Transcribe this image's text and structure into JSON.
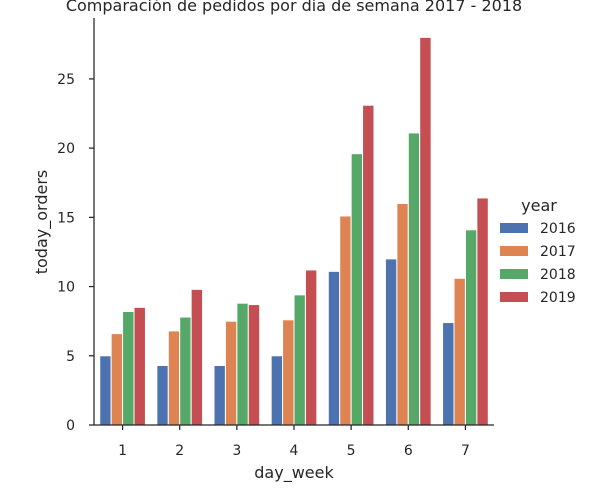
{
  "chart_data": {
    "type": "bar",
    "title": "Comparación de pedidos por día de semana 2017 - 2018",
    "xlabel": "day_week",
    "ylabel": "today_orders",
    "ylim": [
      0,
      29.4
    ],
    "yticks": [
      0,
      5,
      10,
      15,
      20,
      25
    ],
    "categories": [
      "1",
      "2",
      "3",
      "4",
      "5",
      "6",
      "7"
    ],
    "legend_title": "year",
    "legend_placement": "right",
    "grid": false,
    "series": [
      {
        "name": "2016",
        "color": "#4c72b0",
        "values": [
          5.0,
          4.3,
          4.3,
          5.0,
          11.1,
          12.0,
          7.4
        ]
      },
      {
        "name": "2017",
        "color": "#dd8452",
        "values": [
          6.6,
          6.8,
          7.5,
          7.6,
          15.1,
          16.0,
          10.6
        ]
      },
      {
        "name": "2018",
        "color": "#55a868",
        "values": [
          8.2,
          7.8,
          8.8,
          9.4,
          19.6,
          21.1,
          14.1
        ]
      },
      {
        "name": "2019",
        "color": "#c44e52",
        "values": [
          8.5,
          9.8,
          8.7,
          11.2,
          23.1,
          28.0,
          16.4
        ]
      }
    ]
  }
}
